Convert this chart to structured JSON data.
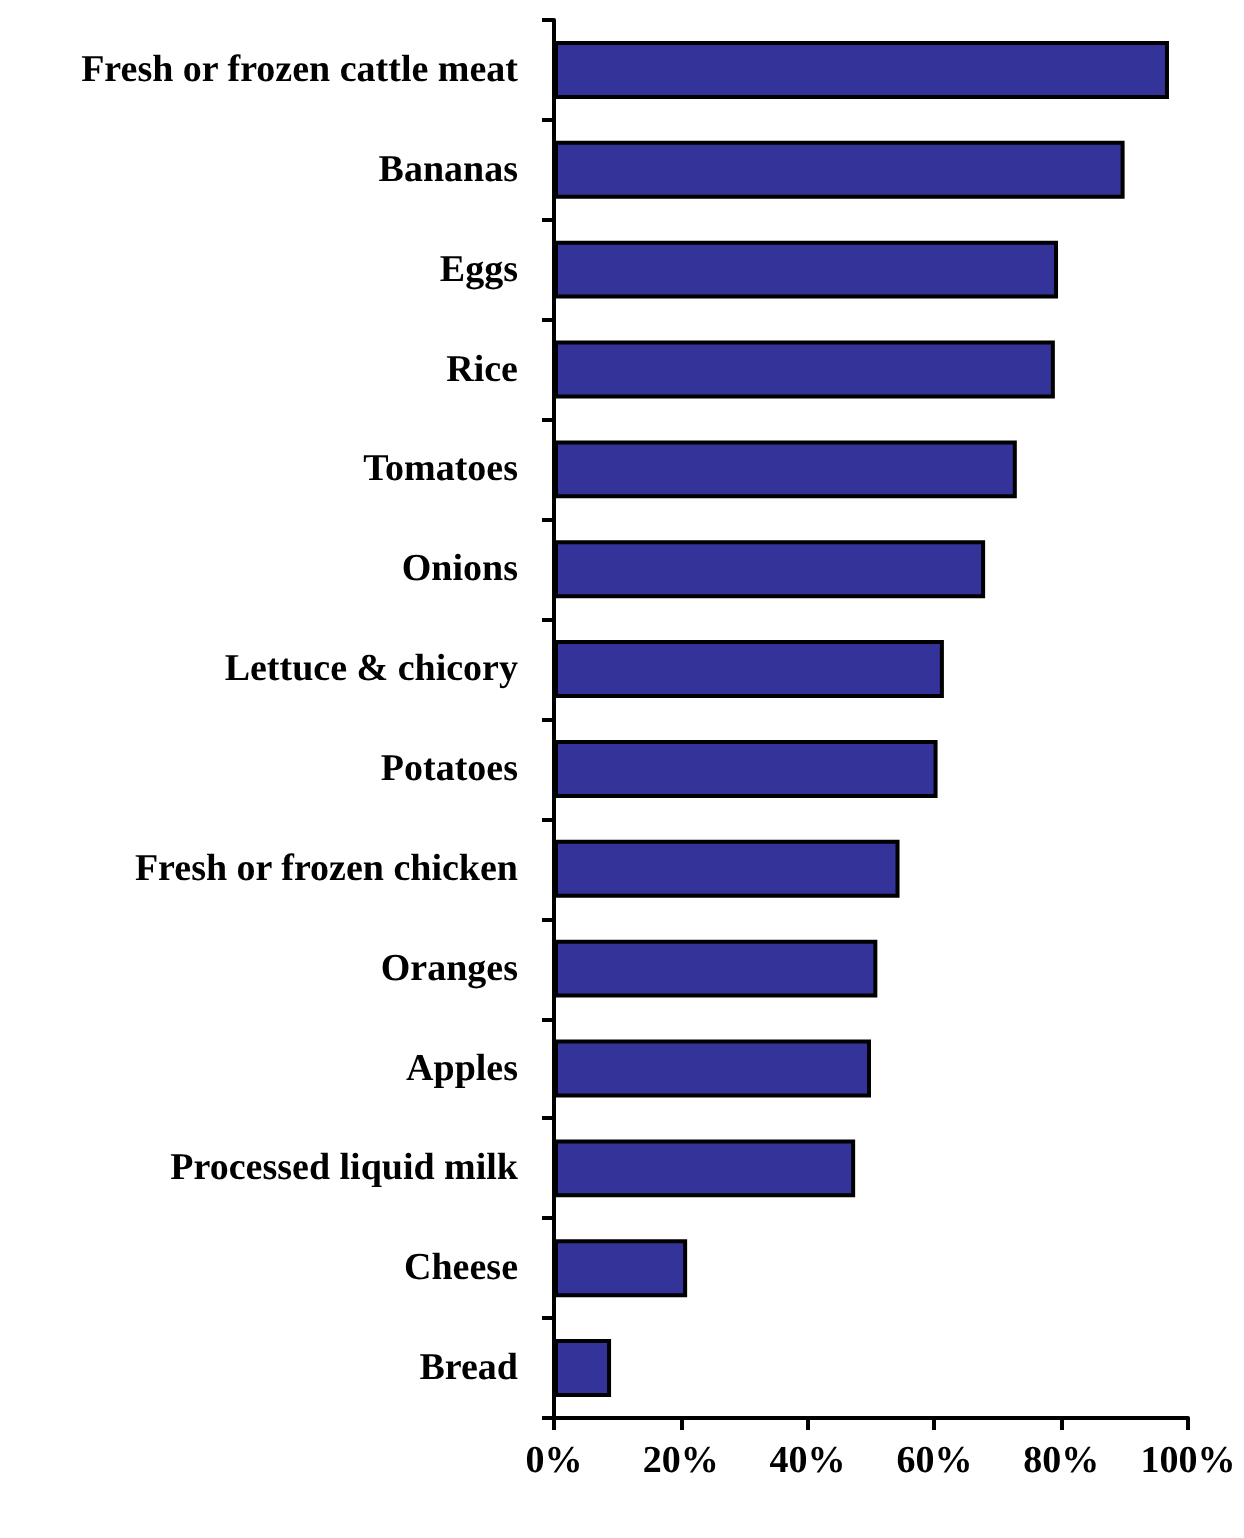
{
  "chart_data": {
    "type": "bar",
    "orientation": "horizontal",
    "categories": [
      "Fresh or frozen cattle meat",
      "Bananas",
      "Eggs",
      "Rice",
      "Tomatoes",
      "Onions",
      "Lettuce & chicory",
      "Potatoes",
      "Fresh or frozen chicken",
      "Oranges",
      "Apples",
      "Processed liquid milk",
      "Cheese",
      "Bread"
    ],
    "values": [
      97,
      90,
      79.5,
      79,
      73,
      68,
      61.5,
      60.5,
      54.5,
      51,
      50,
      47.5,
      21,
      9
    ],
    "color": "#333399",
    "xlim": [
      0,
      100
    ],
    "xticks": [
      {
        "value": 0,
        "label": "0%"
      },
      {
        "value": 20,
        "label": "20%"
      },
      {
        "value": 40,
        "label": "40%"
      },
      {
        "value": 60,
        "label": "60%"
      },
      {
        "value": 80,
        "label": "80%"
      },
      {
        "value": 100,
        "label": "100%"
      }
    ],
    "grid": false
  }
}
